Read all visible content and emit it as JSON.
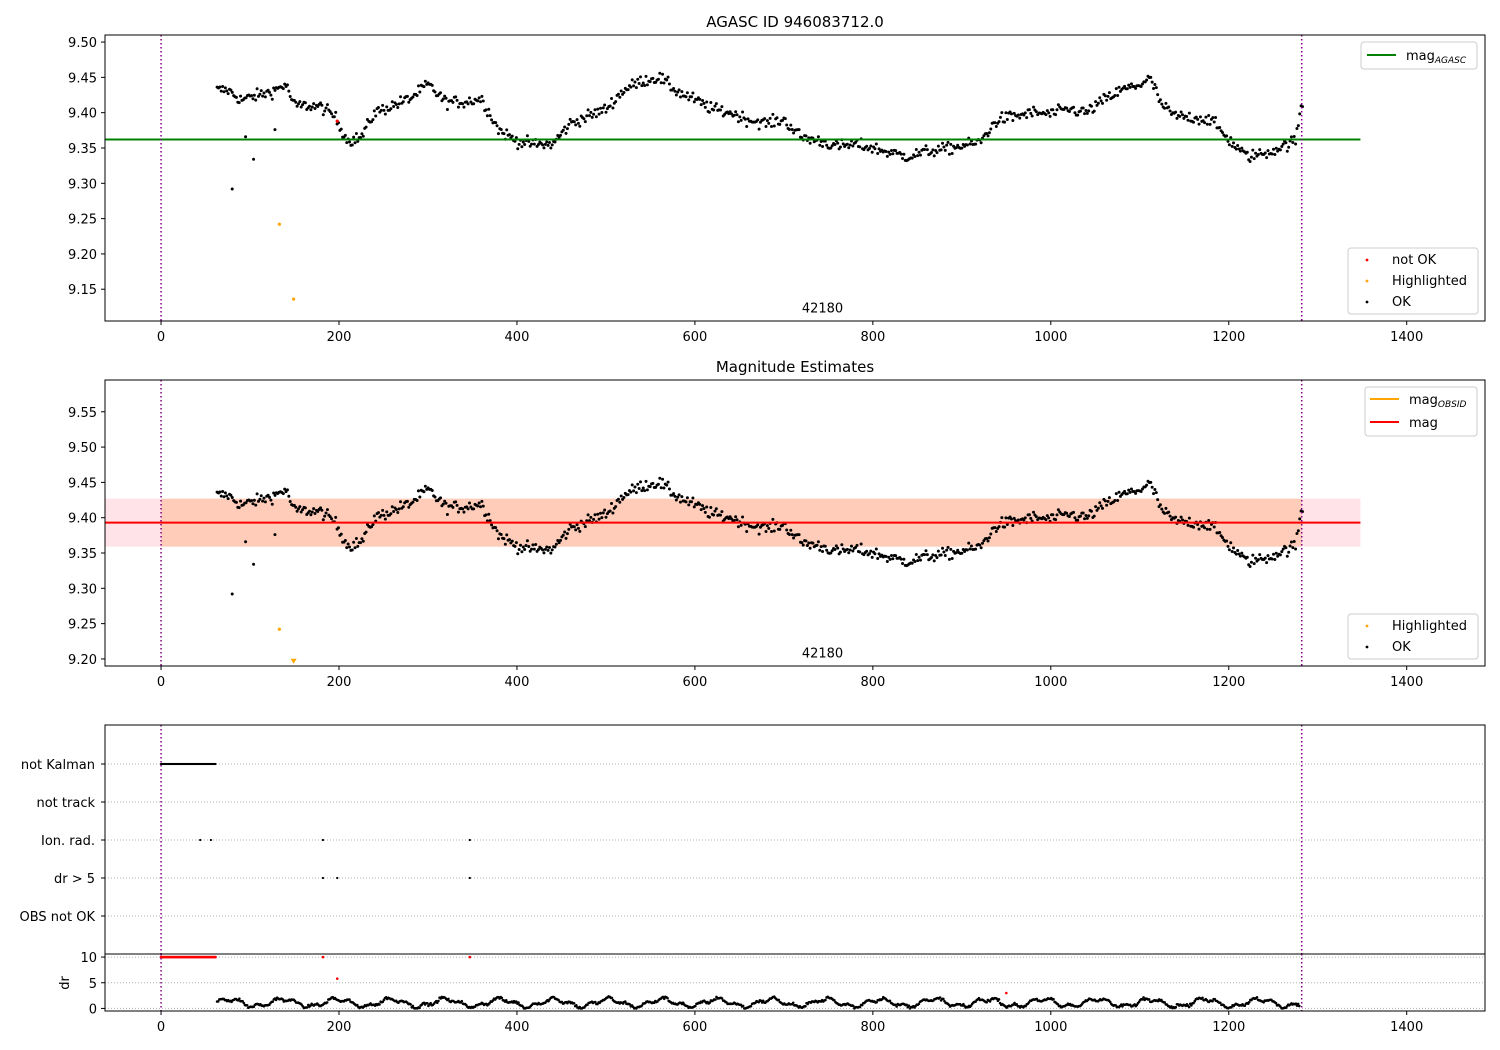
{
  "chart_data": [
    {
      "type": "scatter",
      "title": "AGASC ID 946083712.0",
      "xlim": [
        -63,
        1488
      ],
      "ylim": [
        9.105,
        9.51
      ],
      "xticks": [
        "0",
        "200",
        "400",
        "600",
        "800",
        "1000",
        "1200",
        "1400"
      ],
      "xtick_values": [
        0,
        200,
        400,
        600,
        800,
        1000,
        1200,
        1400
      ],
      "yticks": [
        "9.15",
        "9.20",
        "9.25",
        "9.30",
        "9.35",
        "9.40",
        "9.45",
        "9.50"
      ],
      "ytick_values": [
        9.15,
        9.2,
        9.25,
        9.3,
        9.35,
        9.4,
        9.45,
        9.5
      ],
      "obsid_label": "42180",
      "obsid_label_x": 640,
      "obsid_label_y": 9.12,
      "vlines": [
        0,
        1282
      ],
      "mag_agasc": 9.362,
      "line_x_range": [
        -63,
        1348
      ],
      "highlighted": [
        [
          133,
          9.242
        ],
        [
          149,
          9.136
        ]
      ],
      "not_ok": [
        [
          198,
          9.388
        ]
      ],
      "outliers": [
        [
          80,
          9.292
        ],
        [
          95,
          9.366
        ],
        [
          104,
          9.334
        ],
        [
          128,
          9.376
        ]
      ],
      "legend_top": {
        "label": "mag",
        "sub": "AGASC",
        "color": "#008000"
      },
      "legend_bottom": [
        {
          "label": "not OK",
          "color": "#ff0000"
        },
        {
          "label": "Highlighted",
          "color": "#ffa500"
        },
        {
          "label": "OK",
          "color": "#000000"
        }
      ]
    },
    {
      "type": "scatter",
      "title": "Magnitude Estimates",
      "xlim": [
        -63,
        1488
      ],
      "ylim": [
        9.19,
        9.595
      ],
      "xticks": [
        "0",
        "200",
        "400",
        "600",
        "800",
        "1000",
        "1200",
        "1400"
      ],
      "xtick_values": [
        0,
        200,
        400,
        600,
        800,
        1000,
        1200,
        1400
      ],
      "yticks": [
        "9.20",
        "9.25",
        "9.30",
        "9.35",
        "9.40",
        "9.45",
        "9.50",
        "9.55"
      ],
      "ytick_values": [
        9.2,
        9.25,
        9.3,
        9.35,
        9.4,
        9.45,
        9.5,
        9.55
      ],
      "obsid_label": "42180",
      "obsid_label_x": 640,
      "obsid_label_y": 9.205,
      "vlines": [
        0,
        1282
      ],
      "mag": 9.393,
      "band": [
        9.359,
        9.427
      ],
      "line_x_range": [
        -63,
        1348
      ],
      "highlighted": [
        [
          133,
          9.242
        ]
      ],
      "clipped_marker": [
        149,
        9.196
      ],
      "outliers": [
        [
          80,
          9.292
        ],
        [
          95,
          9.366
        ],
        [
          104,
          9.334
        ],
        [
          128,
          9.376
        ]
      ],
      "legend_top": [
        {
          "label": "mag",
          "sub": "OBSID",
          "color": "#ffa500"
        },
        {
          "label": "mag",
          "color": "#ff0000"
        }
      ],
      "legend_bottom": [
        {
          "label": "Highlighted",
          "color": "#ffa500"
        },
        {
          "label": "OK",
          "color": "#000000"
        }
      ]
    },
    {
      "type": "scatter",
      "title": "",
      "xlim": [
        -63,
        1488
      ],
      "categories": [
        "not Kalman",
        "not track",
        "Ion. rad.",
        "dr > 5",
        "OBS not OK"
      ],
      "flags": {
        "not Kalman": {
          "range": [
            0,
            62
          ]
        },
        "not track": {
          "points": []
        },
        "Ion. rad.": {
          "points": [
            44,
            56,
            182,
            347
          ]
        },
        "dr > 5": {
          "points": [
            182,
            198,
            347
          ]
        },
        "OBS not OK": {
          "points": []
        }
      },
      "vlines": [
        0,
        1282
      ]
    },
    {
      "type": "scatter",
      "title": "",
      "ylabel": "dr",
      "xlim": [
        -63,
        1488
      ],
      "ylim": [
        -0.5,
        10.6
      ],
      "xticks": [
        "0",
        "200",
        "400",
        "600",
        "800",
        "1000",
        "1200",
        "1400"
      ],
      "xtick_values": [
        0,
        200,
        400,
        600,
        800,
        1000,
        1200,
        1400
      ],
      "yticks": [
        "0",
        "5",
        "10"
      ],
      "ytick_values": [
        0,
        5,
        10
      ],
      "vlines": [
        0,
        1282
      ],
      "red_range": [
        0,
        62
      ],
      "red_value": 10,
      "red_points": [
        [
          182,
          10
        ],
        [
          198,
          5.8
        ],
        [
          347,
          10
        ],
        [
          950,
          3
        ]
      ]
    }
  ]
}
